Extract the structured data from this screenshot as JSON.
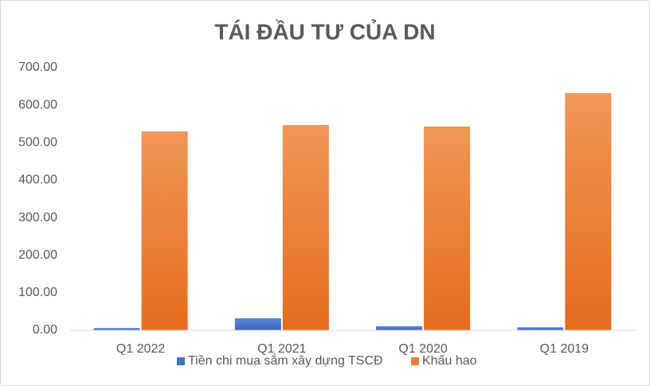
{
  "chart_data": {
    "type": "bar",
    "title": "TÁI ĐẦU TƯ CỦA DN",
    "categories": [
      "Q1 2022",
      "Q1 2021",
      "Q1 2020",
      "Q1 2019"
    ],
    "series": [
      {
        "name": "Tiền chi mua sắm xây dựng TSCĐ",
        "color": "#4472c4",
        "values": [
          6,
          32,
          11,
          8
        ]
      },
      {
        "name": "Khấu hao",
        "color": "#ed7d31",
        "values": [
          530,
          547,
          543,
          632
        ]
      }
    ],
    "ylim": [
      0,
      700
    ],
    "yticks": [
      {
        "value": 0,
        "label": "0.00"
      },
      {
        "value": 100,
        "label": "100.00"
      },
      {
        "value": 200,
        "label": "200.00"
      },
      {
        "value": 300,
        "label": "300.00"
      },
      {
        "value": 400,
        "label": "400.00"
      },
      {
        "value": 500,
        "label": "500.00"
      },
      {
        "value": 600,
        "label": "600.00"
      },
      {
        "value": 700,
        "label": "700.00"
      }
    ],
    "grid": false,
    "legend": "bottom"
  }
}
